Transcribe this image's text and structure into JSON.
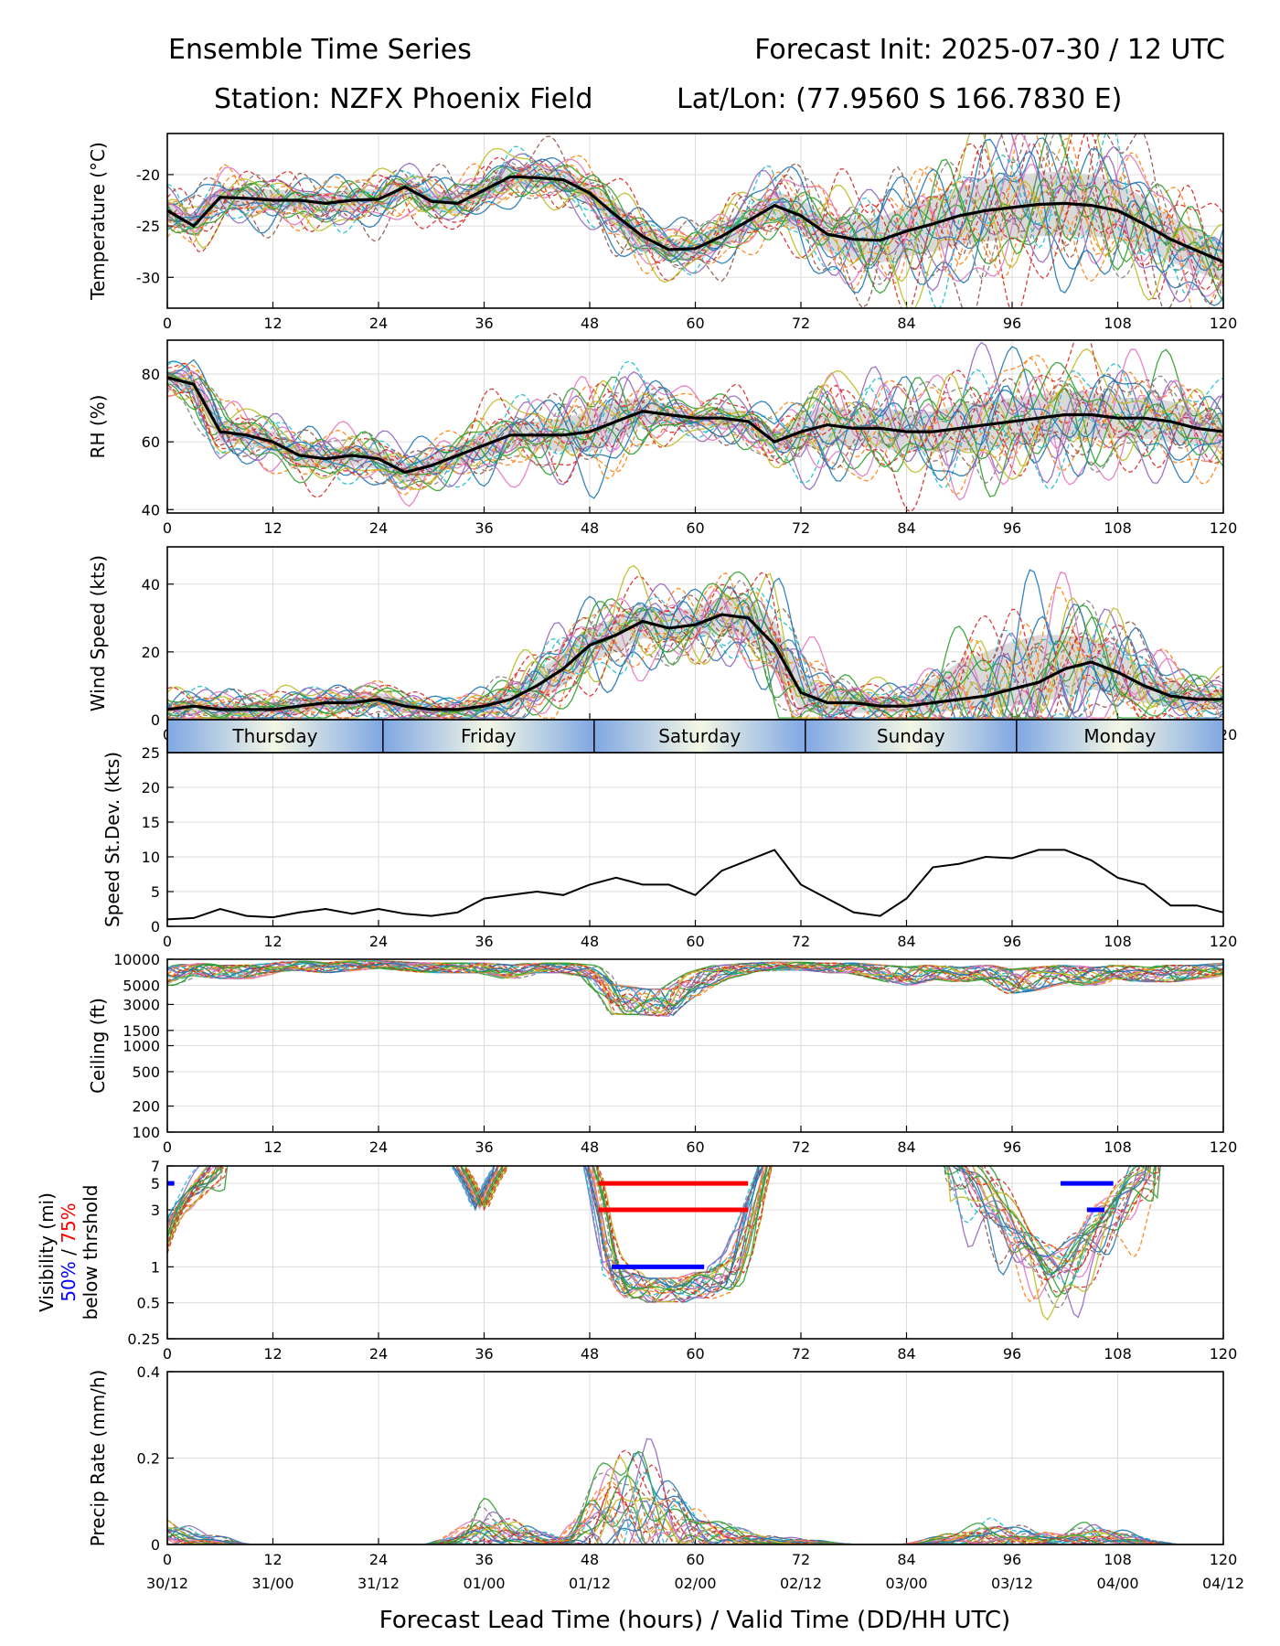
{
  "header": {
    "title_left": "Ensemble Time Series",
    "title_right": "Forecast Init: 2025-07-30 / 12 UTC",
    "station": "Station: NZFX Phoenix Field",
    "latlon": "Lat/Lon: (77.9560 S 166.7830 E)"
  },
  "xaxis": {
    "label": "Forecast Lead Time (hours) / Valid Time (DD/HH UTC)",
    "ticks": [
      0,
      12,
      24,
      36,
      48,
      60,
      72,
      84,
      96,
      108,
      120
    ],
    "valid_times": [
      "30/12",
      "31/00",
      "31/12",
      "01/00",
      "01/12",
      "02/00",
      "02/12",
      "03/00",
      "03/12",
      "04/00",
      "04/12"
    ]
  },
  "days": [
    {
      "label": "Thursday",
      "start": 0,
      "end": 24.5
    },
    {
      "label": "Friday",
      "start": 24.5,
      "end": 48.5
    },
    {
      "label": "Saturday",
      "start": 48.5,
      "end": 72.5
    },
    {
      "label": "Sunday",
      "start": 72.5,
      "end": 96.5
    },
    {
      "label": "Monday",
      "start": 96.5,
      "end": 120
    }
  ],
  "colors": {
    "members": [
      "#1f77b4",
      "#ff7f0e",
      "#2ca02c",
      "#d62728",
      "#9467bd",
      "#8c564b",
      "#e377c2",
      "#7f7f7f",
      "#bcbd22",
      "#17becf"
    ],
    "mean": "#000000",
    "spread": "#d9d9d9",
    "p50": "#0000ff",
    "p75": "#ff0000"
  },
  "chart_data": [
    {
      "id": "temperature",
      "type": "line",
      "ylabel": "Temperature (°C)",
      "ylim": [
        -33,
        -16
      ],
      "yticks": [
        -30,
        -25,
        -20
      ],
      "x": [
        0,
        3,
        6,
        9,
        12,
        15,
        18,
        21,
        24,
        27,
        30,
        33,
        36,
        39,
        42,
        45,
        48,
        51,
        54,
        57,
        60,
        63,
        66,
        69,
        72,
        75,
        78,
        81,
        84,
        87,
        90,
        93,
        96,
        99,
        102,
        105,
        108,
        111,
        114,
        117,
        120
      ],
      "series": [
        {
          "name": "mean",
          "values": [
            -23.5,
            -25,
            -22.2,
            -22.3,
            -22.5,
            -22.5,
            -22.8,
            -22.5,
            -22.4,
            -21.2,
            -22.6,
            -22.8,
            -21.5,
            -20.2,
            -20.3,
            -20.5,
            -21.8,
            -24,
            -26,
            -27.3,
            -27.2,
            -26,
            -24.5,
            -23,
            -24,
            -25.8,
            -26.3,
            -26.4,
            -25.5,
            -24.8,
            -24,
            -23.5,
            -23.2,
            -22.9,
            -22.8,
            -23,
            -23.5,
            -24.8,
            -26.3,
            -27.4,
            -28.5
          ]
        },
        {
          "name": "spread_low",
          "values": [
            -24.5,
            -26,
            -23.2,
            -23.3,
            -23.5,
            -23.5,
            -23.8,
            -23.5,
            -23.4,
            -22.2,
            -23.6,
            -23.8,
            -22.5,
            -21.2,
            -21.3,
            -21.5,
            -22.8,
            -25.2,
            -27.2,
            -28.3,
            -28.2,
            -27.2,
            -25.7,
            -24.4,
            -25.6,
            -27.5,
            -28.3,
            -28.6,
            -28,
            -27.5,
            -26.8,
            -26.5,
            -26.3,
            -26,
            -25.9,
            -26,
            -26.3,
            -27.3,
            -28.5,
            -29.5,
            -30.3
          ]
        },
        {
          "name": "spread_high",
          "values": [
            -22.5,
            -24,
            -21.2,
            -21.3,
            -21.5,
            -21.5,
            -21.8,
            -21.5,
            -21.4,
            -20.2,
            -21.6,
            -21.8,
            -20.5,
            -19.2,
            -19.3,
            -19.5,
            -20.8,
            -22.8,
            -24.8,
            -26.3,
            -26.2,
            -24.8,
            -23.3,
            -21.6,
            -22.4,
            -24.1,
            -24.3,
            -24.2,
            -23,
            -22.1,
            -21.2,
            -20.5,
            -20.1,
            -19.8,
            -19.7,
            -20,
            -20.7,
            -22.3,
            -24.1,
            -25.3,
            -26.7
          ]
        }
      ]
    },
    {
      "id": "rh",
      "type": "line",
      "ylabel": "RH (%)",
      "ylim": [
        39,
        90
      ],
      "yticks": [
        40,
        60,
        80
      ],
      "x": [
        0,
        3,
        6,
        9,
        12,
        15,
        18,
        21,
        24,
        27,
        30,
        33,
        36,
        39,
        42,
        45,
        48,
        51,
        54,
        57,
        60,
        63,
        66,
        69,
        72,
        75,
        78,
        81,
        84,
        87,
        90,
        93,
        96,
        99,
        102,
        105,
        108,
        111,
        114,
        117,
        120
      ],
      "series": [
        {
          "name": "mean",
          "values": [
            79,
            77,
            63,
            62,
            60,
            56,
            55,
            56,
            55,
            51,
            53,
            56,
            59,
            62,
            62,
            62,
            63,
            66,
            69,
            68,
            67,
            67,
            66,
            60,
            63,
            65,
            64,
            64,
            63,
            63,
            64,
            65,
            66,
            67,
            68,
            68,
            67,
            67,
            66,
            64,
            63
          ]
        },
        {
          "name": "spread_low",
          "values": [
            77,
            74,
            60,
            59,
            57,
            53,
            52,
            53,
            52,
            48,
            50,
            53,
            55,
            58,
            58,
            57,
            57,
            60,
            65,
            65,
            65,
            64,
            63,
            57,
            58,
            59,
            59,
            58,
            57,
            57,
            57,
            58,
            59,
            60,
            61,
            61,
            61,
            61,
            60,
            59,
            58
          ]
        },
        {
          "name": "spread_high",
          "values": [
            81,
            80,
            66,
            65,
            63,
            59,
            58,
            59,
            58,
            54,
            56,
            59,
            63,
            66,
            66,
            67,
            69,
            72,
            73,
            71,
            69,
            70,
            69,
            63,
            68,
            71,
            69,
            70,
            69,
            69,
            71,
            72,
            73,
            74,
            75,
            75,
            73,
            73,
            72,
            69,
            68
          ]
        }
      ]
    },
    {
      "id": "wind",
      "type": "line",
      "ylabel": "Wind Speed (kts)",
      "ylim": [
        0,
        51
      ],
      "yticks": [
        0,
        20,
        40
      ],
      "x": [
        0,
        3,
        6,
        9,
        12,
        15,
        18,
        21,
        24,
        27,
        30,
        33,
        36,
        39,
        42,
        45,
        48,
        51,
        54,
        57,
        60,
        63,
        66,
        69,
        72,
        75,
        78,
        81,
        84,
        87,
        90,
        93,
        96,
        99,
        102,
        105,
        108,
        111,
        114,
        117,
        120
      ],
      "series": [
        {
          "name": "mean",
          "values": [
            3,
            4,
            3,
            3,
            3,
            4,
            5,
            5,
            6,
            4,
            3,
            3,
            4,
            6,
            10,
            15,
            22,
            25,
            29,
            27,
            28,
            31,
            30,
            22,
            8,
            5,
            5,
            4,
            4,
            5,
            6,
            7,
            9,
            11,
            15,
            17,
            14,
            10,
            7,
            6,
            6
          ]
        },
        {
          "name": "spread_low",
          "values": [
            1,
            2,
            1,
            1,
            1,
            2,
            3,
            3,
            4,
            2,
            2,
            2,
            2,
            3,
            6,
            10,
            17,
            20,
            24,
            23,
            24,
            26,
            24,
            15,
            3,
            2,
            2,
            2,
            2,
            2,
            3,
            3,
            4,
            5,
            7,
            9,
            7,
            5,
            4,
            3,
            3
          ]
        },
        {
          "name": "spread_high",
          "values": [
            5,
            6,
            5,
            5,
            5,
            6,
            7,
            7,
            8,
            6,
            5,
            5,
            6,
            9,
            14,
            20,
            27,
            30,
            34,
            32,
            33,
            36,
            36,
            29,
            14,
            9,
            8,
            7,
            7,
            12,
            17,
            20,
            23,
            25,
            25,
            24,
            21,
            15,
            11,
            9,
            9
          ]
        }
      ]
    },
    {
      "id": "speed_stdev",
      "type": "line",
      "ylabel": "Speed St.Dev. (kts)",
      "ylim": [
        0,
        25
      ],
      "yticks": [
        0,
        5,
        10,
        15,
        20,
        25
      ],
      "x": [
        0,
        3,
        6,
        9,
        12,
        15,
        18,
        21,
        24,
        27,
        30,
        33,
        36,
        39,
        42,
        45,
        48,
        51,
        54,
        57,
        60,
        63,
        66,
        69,
        72,
        75,
        78,
        81,
        84,
        87,
        90,
        93,
        96,
        99,
        102,
        105,
        108,
        111,
        114,
        117,
        120
      ],
      "series": [
        {
          "name": "stdev",
          "values": [
            1,
            1.2,
            2.5,
            1.5,
            1.3,
            2,
            2.5,
            1.8,
            2.5,
            1.8,
            1.5,
            2,
            4,
            4.5,
            5,
            4.5,
            6,
            7,
            6,
            6,
            4.5,
            8,
            9.5,
            11,
            6,
            4,
            2,
            1.5,
            4,
            8.5,
            9,
            10,
            9.8,
            11,
            11,
            9.5,
            7,
            6,
            3,
            3,
            2
          ]
        }
      ]
    },
    {
      "id": "ceiling",
      "type": "line",
      "ylabel": "Ceiling (ft)",
      "scale": "log",
      "ylim": [
        100,
        10000
      ],
      "yticks": [
        100,
        200,
        500,
        1000,
        1500,
        3000,
        5000,
        10000
      ],
      "x": [
        0,
        3,
        6,
        9,
        12,
        15,
        18,
        21,
        24,
        27,
        30,
        33,
        36,
        39,
        42,
        45,
        48,
        51,
        54,
        57,
        60,
        63,
        66,
        69,
        72,
        75,
        78,
        81,
        84,
        87,
        90,
        93,
        96,
        99,
        102,
        105,
        108,
        111,
        114,
        117,
        120
      ],
      "series": [
        {
          "name": "low",
          "values": [
            5000,
            6500,
            6000,
            6000,
            7000,
            7500,
            7000,
            7500,
            8000,
            7500,
            7000,
            7000,
            7000,
            6000,
            7000,
            7000,
            6000,
            2300,
            2300,
            2200,
            4000,
            6000,
            7000,
            7500,
            7500,
            7000,
            7000,
            6000,
            5000,
            6000,
            5500,
            6000,
            4000,
            4500,
            5500,
            5000,
            6000,
            5500,
            5500,
            6000,
            6500
          ]
        },
        {
          "name": "mid",
          "values": [
            8000,
            9000,
            8500,
            8500,
            9000,
            9500,
            9000,
            9500,
            9600,
            9200,
            9000,
            9000,
            9000,
            8500,
            9000,
            9000,
            8500,
            5000,
            4500,
            4500,
            7000,
            8500,
            9000,
            9200,
            9200,
            9000,
            9000,
            8500,
            8000,
            8500,
            8000,
            8500,
            7500,
            8000,
            8500,
            8000,
            8500,
            8000,
            8500,
            8500,
            9000
          ]
        }
      ]
    },
    {
      "id": "visibility",
      "type": "line",
      "ylabel": "Visibility (mi)",
      "ylabel_p50": "50%",
      "ylabel_sep": " / ",
      "ylabel_p75": "75%",
      "ylabel2": "below thrshold",
      "scale": "log",
      "ylim": [
        0.25,
        7
      ],
      "yticks": [
        0.25,
        0.5,
        1,
        3,
        5,
        7
      ],
      "x": [
        48,
        49,
        50,
        51,
        52,
        53,
        54,
        55,
        56,
        57,
        58,
        59,
        60,
        61,
        62,
        63,
        64,
        65,
        66,
        67,
        68
      ],
      "series": [
        {
          "name": "low",
          "values": [
            7,
            3,
            1,
            0.7,
            0.6,
            0.6,
            0.55,
            0.55,
            0.55,
            0.55,
            0.55,
            0.55,
            0.6,
            0.6,
            0.6,
            0.65,
            0.7,
            0.9,
            1.5,
            3,
            7
          ]
        },
        {
          "name": "mid",
          "values": [
            7,
            5,
            2,
            1.2,
            1,
            0.9,
            0.85,
            0.8,
            0.8,
            0.8,
            0.8,
            0.85,
            0.9,
            0.9,
            1,
            1.1,
            1.3,
            2,
            3,
            5,
            7
          ]
        }
      ],
      "threshold_bars": [
        {
          "level": 5,
          "start": 49,
          "end": 66,
          "pct": 75
        },
        {
          "level": 3,
          "start": 49,
          "end": 66,
          "pct": 75
        },
        {
          "level": 1,
          "start": 50.5,
          "end": 61,
          "pct": 50
        },
        {
          "level": 5,
          "start": 0,
          "end": 0.8,
          "pct": 50
        },
        {
          "level": 5,
          "start": 101.5,
          "end": 107.5,
          "pct": 50
        },
        {
          "level": 3,
          "start": 104.5,
          "end": 106.5,
          "pct": 50
        }
      ]
    },
    {
      "id": "precip",
      "type": "line",
      "ylabel": "Precip Rate (mm/h)",
      "ylim": [
        0,
        0.4
      ],
      "yticks": [
        0.0,
        0.2,
        0.4
      ],
      "x": [
        0,
        3,
        6,
        9,
        12,
        15,
        18,
        21,
        24,
        27,
        30,
        33,
        36,
        39,
        42,
        45,
        48,
        51,
        54,
        57,
        60,
        63,
        66,
        69,
        72,
        75,
        78,
        81,
        84,
        87,
        90,
        93,
        96,
        99,
        102,
        105,
        108,
        111,
        114,
        117,
        120
      ],
      "series": [
        {
          "name": "mean",
          "values": [
            0.02,
            0.01,
            0.005,
            0,
            0,
            0,
            0,
            0,
            0,
            0,
            0,
            0.01,
            0.03,
            0.02,
            0.01,
            0.005,
            0.04,
            0.08,
            0.09,
            0.06,
            0.03,
            0.02,
            0.01,
            0.005,
            0.005,
            0.002,
            0,
            0,
            0,
            0.005,
            0.01,
            0.02,
            0.015,
            0.01,
            0.01,
            0.015,
            0.01,
            0.005,
            0,
            0,
            0
          ]
        }
      ]
    }
  ]
}
